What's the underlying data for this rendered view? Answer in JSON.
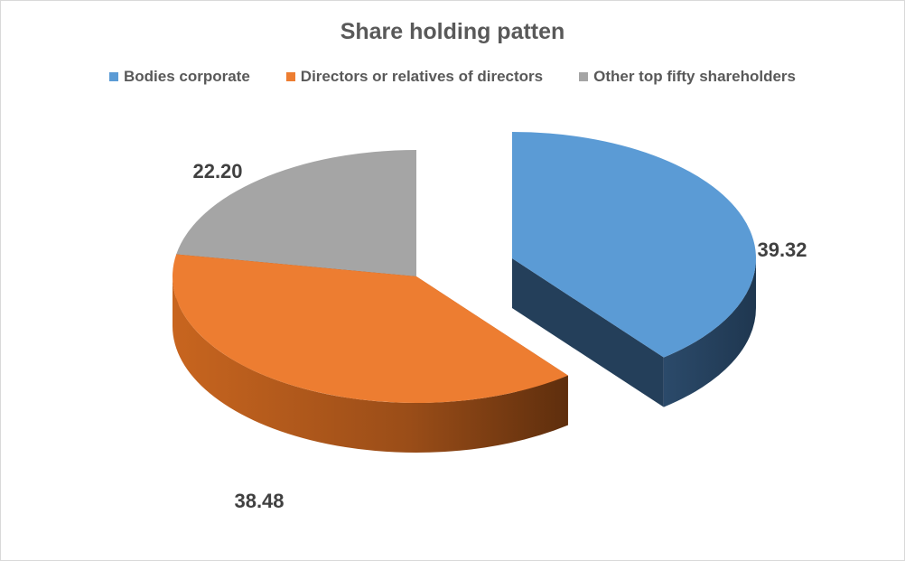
{
  "chart_data": {
    "type": "pie",
    "title": "Share holding patten",
    "categories": [
      "Bodies corporate",
      "Directors or relatives of directors",
      "Other top fifty shareholders"
    ],
    "values": [
      39.32,
      38.48,
      22.2
    ],
    "value_labels": [
      "39.32",
      "38.48",
      "22.20"
    ],
    "colors": [
      "#5b9bd5",
      "#ed7d31",
      "#a5a5a5"
    ],
    "side_colors": [
      "#243f5a",
      "#a0521c",
      "#404040"
    ],
    "legend_position": "top",
    "style": "3d-exploded"
  }
}
